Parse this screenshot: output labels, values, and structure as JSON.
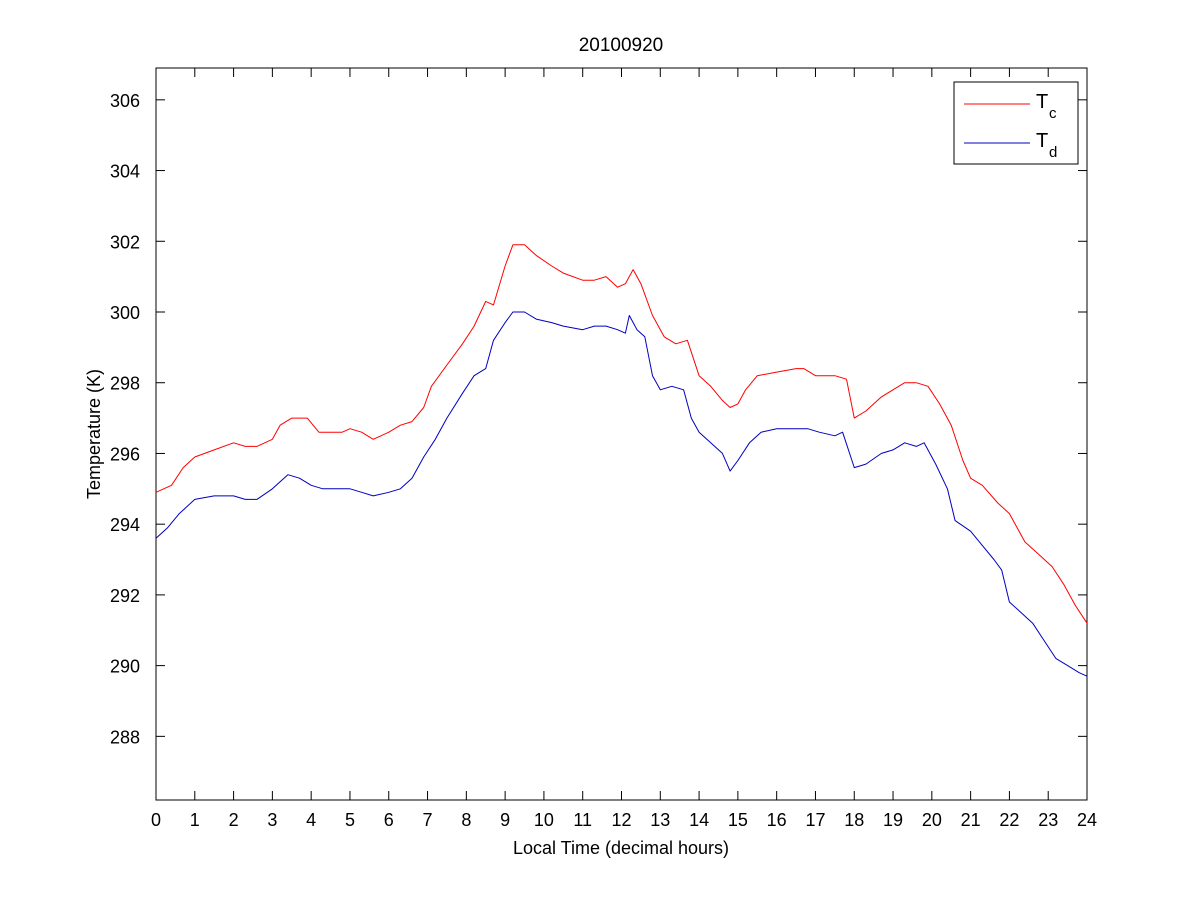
{
  "chart_data": {
    "type": "line",
    "title": "20100920",
    "xlabel": "Local Time (decimal hours)",
    "ylabel": "Temperature (K)",
    "xlim": [
      0,
      24
    ],
    "ylim": [
      286.2,
      306.9
    ],
    "xticks": [
      0,
      1,
      2,
      3,
      4,
      5,
      6,
      7,
      8,
      9,
      10,
      11,
      12,
      13,
      14,
      15,
      16,
      17,
      18,
      19,
      20,
      21,
      22,
      23,
      24
    ],
    "yticks": [
      288,
      290,
      292,
      294,
      296,
      298,
      300,
      302,
      304,
      306
    ],
    "grid": false,
    "legend_position": "top-right",
    "series": [
      {
        "name": "T",
        "subscript": "c",
        "color": "#ff0000",
        "x": [
          0,
          0.4,
          0.7,
          1,
          1.5,
          2,
          2.3,
          2.6,
          3,
          3.2,
          3.5,
          3.9,
          4.2,
          4.5,
          4.8,
          5,
          5.3,
          5.6,
          6,
          6.3,
          6.6,
          6.9,
          7.1,
          7.5,
          7.9,
          8.2,
          8.5,
          8.7,
          9,
          9.2,
          9.5,
          9.8,
          10.2,
          10.5,
          11,
          11.3,
          11.6,
          11.9,
          12.1,
          12.3,
          12.5,
          12.8,
          13.1,
          13.4,
          13.7,
          14,
          14.3,
          14.6,
          14.8,
          15,
          15.2,
          15.5,
          16,
          16.5,
          16.7,
          17,
          17.5,
          17.8,
          18,
          18.3,
          18.7,
          19,
          19.3,
          19.6,
          19.9,
          20.2,
          20.5,
          20.8,
          21,
          21.3,
          21.7,
          22,
          22.4,
          22.8,
          23.1,
          23.4,
          23.7,
          24
        ],
        "y": [
          294.9,
          295.1,
          295.6,
          295.9,
          296.1,
          296.3,
          296.2,
          296.2,
          296.4,
          296.8,
          297.0,
          297.0,
          296.6,
          296.6,
          296.6,
          296.7,
          296.6,
          296.4,
          296.6,
          296.8,
          296.9,
          297.3,
          297.9,
          298.5,
          299.1,
          299.6,
          300.3,
          300.2,
          301.3,
          301.9,
          301.9,
          301.6,
          301.3,
          301.1,
          300.9,
          300.9,
          301.0,
          300.7,
          300.8,
          301.2,
          300.8,
          299.9,
          299.3,
          299.1,
          299.2,
          298.2,
          297.9,
          297.5,
          297.3,
          297.4,
          297.8,
          298.2,
          298.3,
          298.4,
          298.4,
          298.2,
          298.2,
          298.1,
          297.0,
          297.2,
          297.6,
          297.8,
          298.0,
          298.0,
          297.9,
          297.4,
          296.8,
          295.8,
          295.3,
          295.1,
          294.6,
          294.3,
          293.5,
          293.1,
          292.8,
          292.3,
          291.7,
          291.2
        ]
      },
      {
        "name": "T",
        "subscript": "d",
        "color": "#0000c0",
        "x": [
          0,
          0.3,
          0.6,
          1,
          1.5,
          2,
          2.3,
          2.6,
          3,
          3.2,
          3.4,
          3.7,
          4,
          4.3,
          4.6,
          5,
          5.3,
          5.6,
          6,
          6.3,
          6.6,
          6.9,
          7.2,
          7.5,
          7.9,
          8.2,
          8.5,
          8.7,
          9,
          9.2,
          9.5,
          9.8,
          10.2,
          10.5,
          11,
          11.3,
          11.6,
          11.9,
          12.1,
          12.2,
          12.4,
          12.6,
          12.8,
          13,
          13.3,
          13.6,
          13.8,
          14,
          14.3,
          14.6,
          14.8,
          15,
          15.3,
          15.6,
          16,
          16.4,
          16.8,
          17.1,
          17.5,
          17.7,
          18,
          18.3,
          18.7,
          19,
          19.3,
          19.6,
          19.8,
          20.1,
          20.4,
          20.6,
          21,
          21.3,
          21.6,
          21.8,
          22,
          22.3,
          22.6,
          22.9,
          23.2,
          23.5,
          23.8,
          24
        ],
        "y": [
          293.6,
          293.9,
          294.3,
          294.7,
          294.8,
          294.8,
          294.7,
          294.7,
          295.0,
          295.2,
          295.4,
          295.3,
          295.1,
          295.0,
          295.0,
          295.0,
          294.9,
          294.8,
          294.9,
          295.0,
          295.3,
          295.9,
          296.4,
          297.0,
          297.7,
          298.2,
          298.4,
          299.2,
          299.7,
          300.0,
          300.0,
          299.8,
          299.7,
          299.6,
          299.5,
          299.6,
          299.6,
          299.5,
          299.4,
          299.9,
          299.5,
          299.3,
          298.2,
          297.8,
          297.9,
          297.8,
          297.0,
          296.6,
          296.3,
          296.0,
          295.5,
          295.8,
          296.3,
          296.6,
          296.7,
          296.7,
          296.7,
          296.6,
          296.5,
          296.6,
          295.6,
          295.7,
          296.0,
          296.1,
          296.3,
          296.2,
          296.3,
          295.7,
          295.0,
          294.1,
          293.8,
          293.4,
          293.0,
          292.7,
          291.8,
          291.5,
          291.2,
          290.7,
          290.2,
          290.0,
          289.8,
          289.7
        ]
      }
    ]
  }
}
